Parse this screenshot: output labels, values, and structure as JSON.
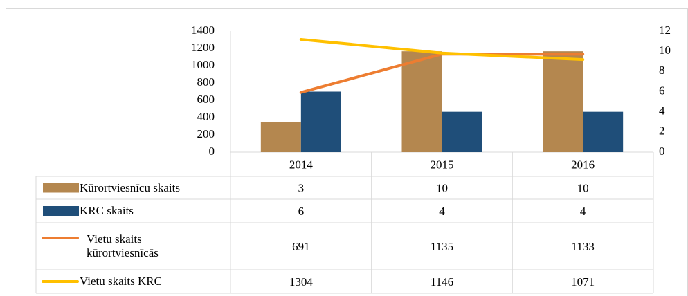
{
  "chart_data": {
    "type": "combo",
    "categories": [
      "2014",
      "2015",
      "2016"
    ],
    "series": [
      {
        "name": "Kūrortviesnīcu skaits",
        "type": "bar",
        "axis": "y2",
        "color": "#b4874f",
        "values": [
          3,
          10,
          10
        ]
      },
      {
        "name": "KRC skaits",
        "type": "bar",
        "axis": "y2",
        "color": "#1f4e79",
        "values": [
          6,
          4,
          4
        ]
      },
      {
        "name": "Vietu skaits kūrortviesnīcās",
        "type": "line",
        "color": "#ed7d31",
        "values": [
          691,
          1135,
          1133
        ]
      },
      {
        "name": "Vietu skaits KRC",
        "type": "line",
        "color": "#ffc000",
        "values": [
          1304,
          1146,
          1071
        ]
      }
    ],
    "ylim": [
      0,
      1400
    ],
    "yticks": [
      0,
      200,
      400,
      600,
      800,
      1000,
      1200,
      1400
    ],
    "y2lim": [
      0,
      12
    ],
    "y2ticks": [
      0,
      2,
      4,
      6,
      8,
      10,
      12
    ],
    "grid": false
  }
}
